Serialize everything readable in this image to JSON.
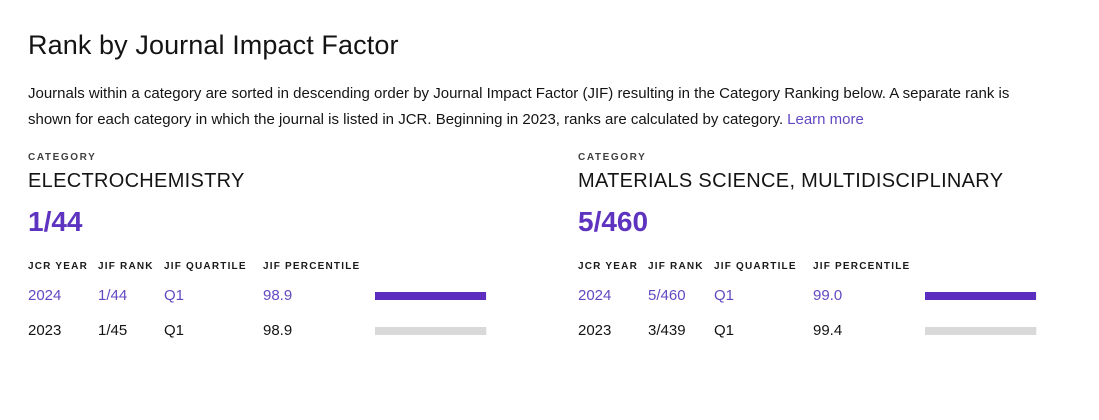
{
  "page": {
    "title": "Rank by Journal Impact Factor",
    "description": "Journals within a category are sorted in descending order by Journal Impact Factor (JIF) resulting in the Category Ranking below. A separate rank is shown for each category in which the journal is listed in JCR. Beginning in 2023, ranks are calculated by category.",
    "learn_more_label": "Learn more"
  },
  "category_label": "CATEGORY",
  "columns": [
    "JCR YEAR",
    "JIF RANK",
    "JIF QUARTILE",
    "JIF PERCENTILE"
  ],
  "panels": [
    {
      "category": "ELECTROCHEMISTRY",
      "rank": "1/44",
      "rows": [
        {
          "year": "2024",
          "rank": "1/44",
          "quartile": "Q1",
          "percentile": "98.9",
          "highlight": true
        },
        {
          "year": "2023",
          "rank": "1/45",
          "quartile": "Q1",
          "percentile": "98.9",
          "highlight": false
        }
      ]
    },
    {
      "category": "MATERIALS SCIENCE, MULTIDISCIPLINARY",
      "rank": "5/460",
      "rows": [
        {
          "year": "2024",
          "rank": "5/460",
          "quartile": "Q1",
          "percentile": "99.0",
          "highlight": true
        },
        {
          "year": "2023",
          "rank": "3/439",
          "quartile": "Q1",
          "percentile": "99.4",
          "highlight": false
        }
      ]
    }
  ],
  "colors": {
    "accent_purple": "#5e33bf",
    "row_highlight_purple": "#6349c1",
    "bar_purple": "#5c2dbe",
    "bar_gray": "#d9d9d9",
    "bar_track": "#f3f2f5",
    "text_dark": "#141414",
    "link_purple": "#6349c1"
  }
}
